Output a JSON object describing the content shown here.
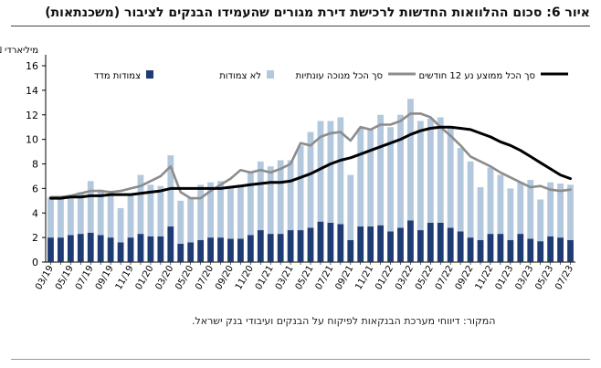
{
  "title": "איור 6: סכום ההלוואות החדשות לרכישת דירת מגורים שהעמידו הבנקים לציבור (משכנתאות)",
  "source": "המקור: דיווחי מערכת הבנקאות לפיקוח על הבנקים ועיבודי בנק ישראל.",
  "chart_data": {
    "type": "bar",
    "stacked": true,
    "ylabel": "מיליארדי ₪",
    "ylim": [
      0,
      16
    ],
    "yticks": [
      0,
      2,
      4,
      6,
      8,
      10,
      12,
      14,
      16
    ],
    "grid": false,
    "legend_position": "top",
    "x": [
      "03/19",
      "04/19",
      "05/19",
      "06/19",
      "07/19",
      "08/19",
      "09/19",
      "10/19",
      "11/19",
      "12/19",
      "01/20",
      "02/20",
      "03/20",
      "04/20",
      "05/20",
      "06/20",
      "07/20",
      "08/20",
      "09/20",
      "10/20",
      "11/20",
      "12/20",
      "01/21",
      "02/21",
      "03/21",
      "04/21",
      "05/21",
      "06/21",
      "07/21",
      "08/21",
      "09/21",
      "10/21",
      "11/21",
      "12/21",
      "01/22",
      "02/22",
      "03/22",
      "04/22",
      "05/22",
      "06/22",
      "07/22",
      "08/22",
      "09/22",
      "10/22",
      "11/22",
      "12/22",
      "01/23",
      "02/23",
      "03/23",
      "04/23",
      "05/23",
      "06/23",
      "07/23"
    ],
    "xtick_labels": [
      "03/19",
      "05/19",
      "07/19",
      "09/19",
      "11/19",
      "01/20",
      "03/20",
      "05/20",
      "07/20",
      "09/20",
      "11/20",
      "01/21",
      "03/21",
      "05/21",
      "07/21",
      "09/21",
      "11/21",
      "01/22",
      "03/22",
      "05/22",
      "07/22",
      "09/22",
      "11/22",
      "01/23",
      "03/23",
      "05/23",
      "07/23"
    ],
    "series": [
      {
        "name": "צמודות מדד",
        "kind": "bar",
        "color": "#1f3b73",
        "values": [
          2.0,
          2.0,
          2.2,
          2.3,
          2.4,
          2.2,
          2.0,
          1.6,
          2.0,
          2.3,
          2.1,
          2.1,
          2.9,
          1.5,
          1.6,
          1.8,
          2.0,
          2.0,
          1.9,
          1.9,
          2.2,
          2.6,
          2.3,
          2.3,
          2.6,
          2.6,
          2.8,
          3.3,
          3.2,
          3.1,
          1.8,
          2.9,
          2.9,
          3.0,
          2.5,
          2.8,
          3.4,
          2.6,
          3.2,
          3.2,
          2.8,
          2.5,
          2.0,
          1.8,
          2.3,
          2.3,
          1.8,
          2.3,
          1.9,
          1.7,
          2.1,
          2.0,
          1.8
        ]
      },
      {
        "name": "לא צמודות",
        "kind": "bar",
        "color": "#b3c7dd",
        "values": [
          3.3,
          3.2,
          3.0,
          3.4,
          4.2,
          3.7,
          3.7,
          2.8,
          3.5,
          4.8,
          4.2,
          4.1,
          5.8,
          3.5,
          3.6,
          4.5,
          4.5,
          4.6,
          4.2,
          4.4,
          5.1,
          5.6,
          5.5,
          6.0,
          5.7,
          6.9,
          7.8,
          8.2,
          8.3,
          8.7,
          5.3,
          8.0,
          8.0,
          9.0,
          8.5,
          9.2,
          9.9,
          8.9,
          8.5,
          8.6,
          8.2,
          6.8,
          6.2,
          4.3,
          5.4,
          4.8,
          4.2,
          4.2,
          4.8,
          3.4,
          4.4,
          4.4,
          4.5
        ]
      },
      {
        "name": "סך הכל מנוכה עונתיות",
        "kind": "line",
        "color": "#8c8c8c",
        "values": [
          5.3,
          5.3,
          5.4,
          5.6,
          5.8,
          5.8,
          5.7,
          5.8,
          6.0,
          6.2,
          6.6,
          7.0,
          7.8,
          5.7,
          5.2,
          5.2,
          5.8,
          6.3,
          6.8,
          7.5,
          7.3,
          7.5,
          7.3,
          7.6,
          8.0,
          9.7,
          9.5,
          10.2,
          10.5,
          10.6,
          9.9,
          11.0,
          10.8,
          11.2,
          11.2,
          11.5,
          12.1,
          12.1,
          11.8,
          11.0,
          10.3,
          9.5,
          8.6,
          8.2,
          7.8,
          7.3,
          6.9,
          6.5,
          6.1,
          6.2,
          5.9,
          5.8,
          5.9
        ]
      },
      {
        "name": "סך הכל ממוצע נע 12 חודשים",
        "kind": "line",
        "color": "#000000",
        "values": [
          5.2,
          5.2,
          5.3,
          5.3,
          5.4,
          5.4,
          5.5,
          5.5,
          5.5,
          5.6,
          5.7,
          5.8,
          6.0,
          6.0,
          6.0,
          6.0,
          6.0,
          6.0,
          6.1,
          6.2,
          6.3,
          6.4,
          6.5,
          6.5,
          6.6,
          6.9,
          7.2,
          7.6,
          8.0,
          8.3,
          8.5,
          8.8,
          9.1,
          9.4,
          9.7,
          10.0,
          10.4,
          10.7,
          10.9,
          11.0,
          11.0,
          10.9,
          10.8,
          10.5,
          10.2,
          9.8,
          9.5,
          9.1,
          8.6,
          8.1,
          7.6,
          7.1,
          6.8
        ]
      }
    ]
  }
}
